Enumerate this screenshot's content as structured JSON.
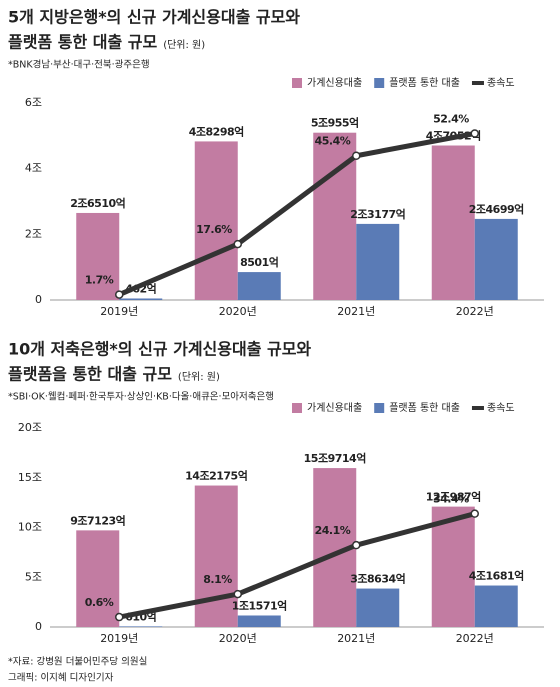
{
  "chart_data": [
    {
      "type": "bar",
      "title": "5개 지방은행*의 신규 가계신용대출 규모와",
      "title_line2": "플랫폼 통한 대출 규모",
      "unit": "(단위: 원)",
      "note": "*BNK경남·부산·대구·전북·광주은행",
      "categories": [
        "2019년",
        "2020년",
        "2021년",
        "2022년"
      ],
      "ylim": [
        0,
        6
      ],
      "yticks": [
        0,
        {
          "value": 2,
          "label": "2조"
        },
        {
          "value": 4,
          "label": "4조"
        },
        {
          "value": 6,
          "label": "6조"
        }
      ],
      "y2lim": [
        0,
        62
      ],
      "series": [
        {
          "name": "가계신용대출",
          "color": "#c27ca2",
          "values": [
            2.651,
            4.8298,
            5.0955,
            4.7052
          ],
          "value_labels": [
            "2조6510억",
            "4조8298억",
            "5조955억",
            "4조7052억"
          ]
        },
        {
          "name": "플랫폼 통한 대출",
          "color": "#5a7bb6",
          "values": [
            0.0462,
            0.8501,
            2.3177,
            2.4699
          ],
          "value_labels": [
            "462억",
            "8501억",
            "2조3177억",
            "2조4699억"
          ]
        },
        {
          "name": "종속도",
          "type": "line",
          "axis": "y2",
          "color": "#333333",
          "values": [
            1.7,
            17.6,
            45.4,
            52.4
          ],
          "value_labels": [
            "1.7%",
            "17.6%",
            "45.4%",
            "52.4%"
          ]
        }
      ]
    },
    {
      "type": "bar",
      "title": "10개 저축은행*의 신규 가계신용대출 규모와",
      "title_line2": "플랫폼을 통한 대출 규모",
      "unit": "(단위: 원)",
      "note": "*SBI·OK·웰컴·페퍼·한국투자·상상인·KB·다올·애큐온·모아저축은행",
      "categories": [
        "2019년",
        "2020년",
        "2021년",
        "2022년"
      ],
      "ylim": [
        0,
        20
      ],
      "yticks": [
        0,
        {
          "value": 5,
          "label": "5조"
        },
        {
          "value": 10,
          "label": "10조"
        },
        {
          "value": 15,
          "label": "15조"
        },
        {
          "value": 20,
          "label": "20조"
        }
      ],
      "y2lim": [
        -2.65,
        62.4
      ],
      "series": [
        {
          "name": "가계신용대출",
          "color": "#c27ca2",
          "values": [
            9.7123,
            14.2175,
            15.9714,
            12.0987
          ],
          "value_labels": [
            "9조7123억",
            "14조2175억",
            "15조9714억",
            "12조987억"
          ]
        },
        {
          "name": "플랫폼 통한 대출",
          "color": "#5a7bb6",
          "values": [
            0.061,
            1.1571,
            3.8634,
            4.1681
          ],
          "value_labels": [
            "610억",
            "1조1571억",
            "3조8634억",
            "4조1681억"
          ]
        },
        {
          "name": "종속도",
          "type": "line",
          "axis": "y2",
          "color": "#333333",
          "values": [
            0.6,
            8.1,
            24.1,
            34.4
          ],
          "value_labels": [
            "0.6%",
            "8.1%",
            "24.1%",
            "34.4%"
          ]
        }
      ]
    }
  ],
  "source": "*자료: 강병원 더불어민주당 의원실",
  "credit": "그래픽: 이지혜 디자인기자"
}
